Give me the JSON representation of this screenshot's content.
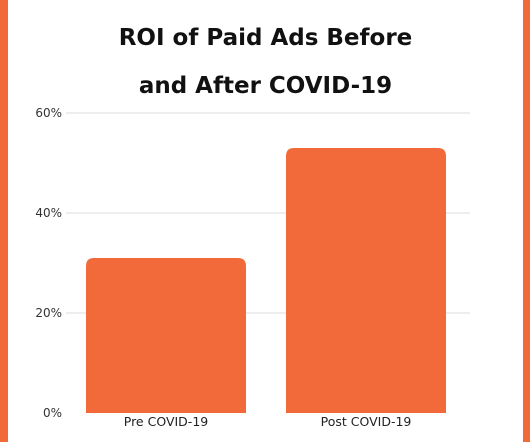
{
  "chart_data": {
    "type": "bar",
    "title_lines": [
      "ROI of Paid Ads Before",
      "and After COVID-19"
    ],
    "categories": [
      "Pre COVID-19",
      "Post COVID-19"
    ],
    "values": [
      31,
      53
    ],
    "ylim": [
      0,
      60
    ],
    "yticks": [
      0,
      20,
      40,
      60
    ],
    "ytick_labels": [
      "0%",
      "20%",
      "40%",
      "60%"
    ],
    "y_unit": "%",
    "grid": true,
    "legend": "none",
    "bar_color": "#F26A3A",
    "frame_color": "#F26A3A",
    "grid_color": "#DDDDDD"
  }
}
